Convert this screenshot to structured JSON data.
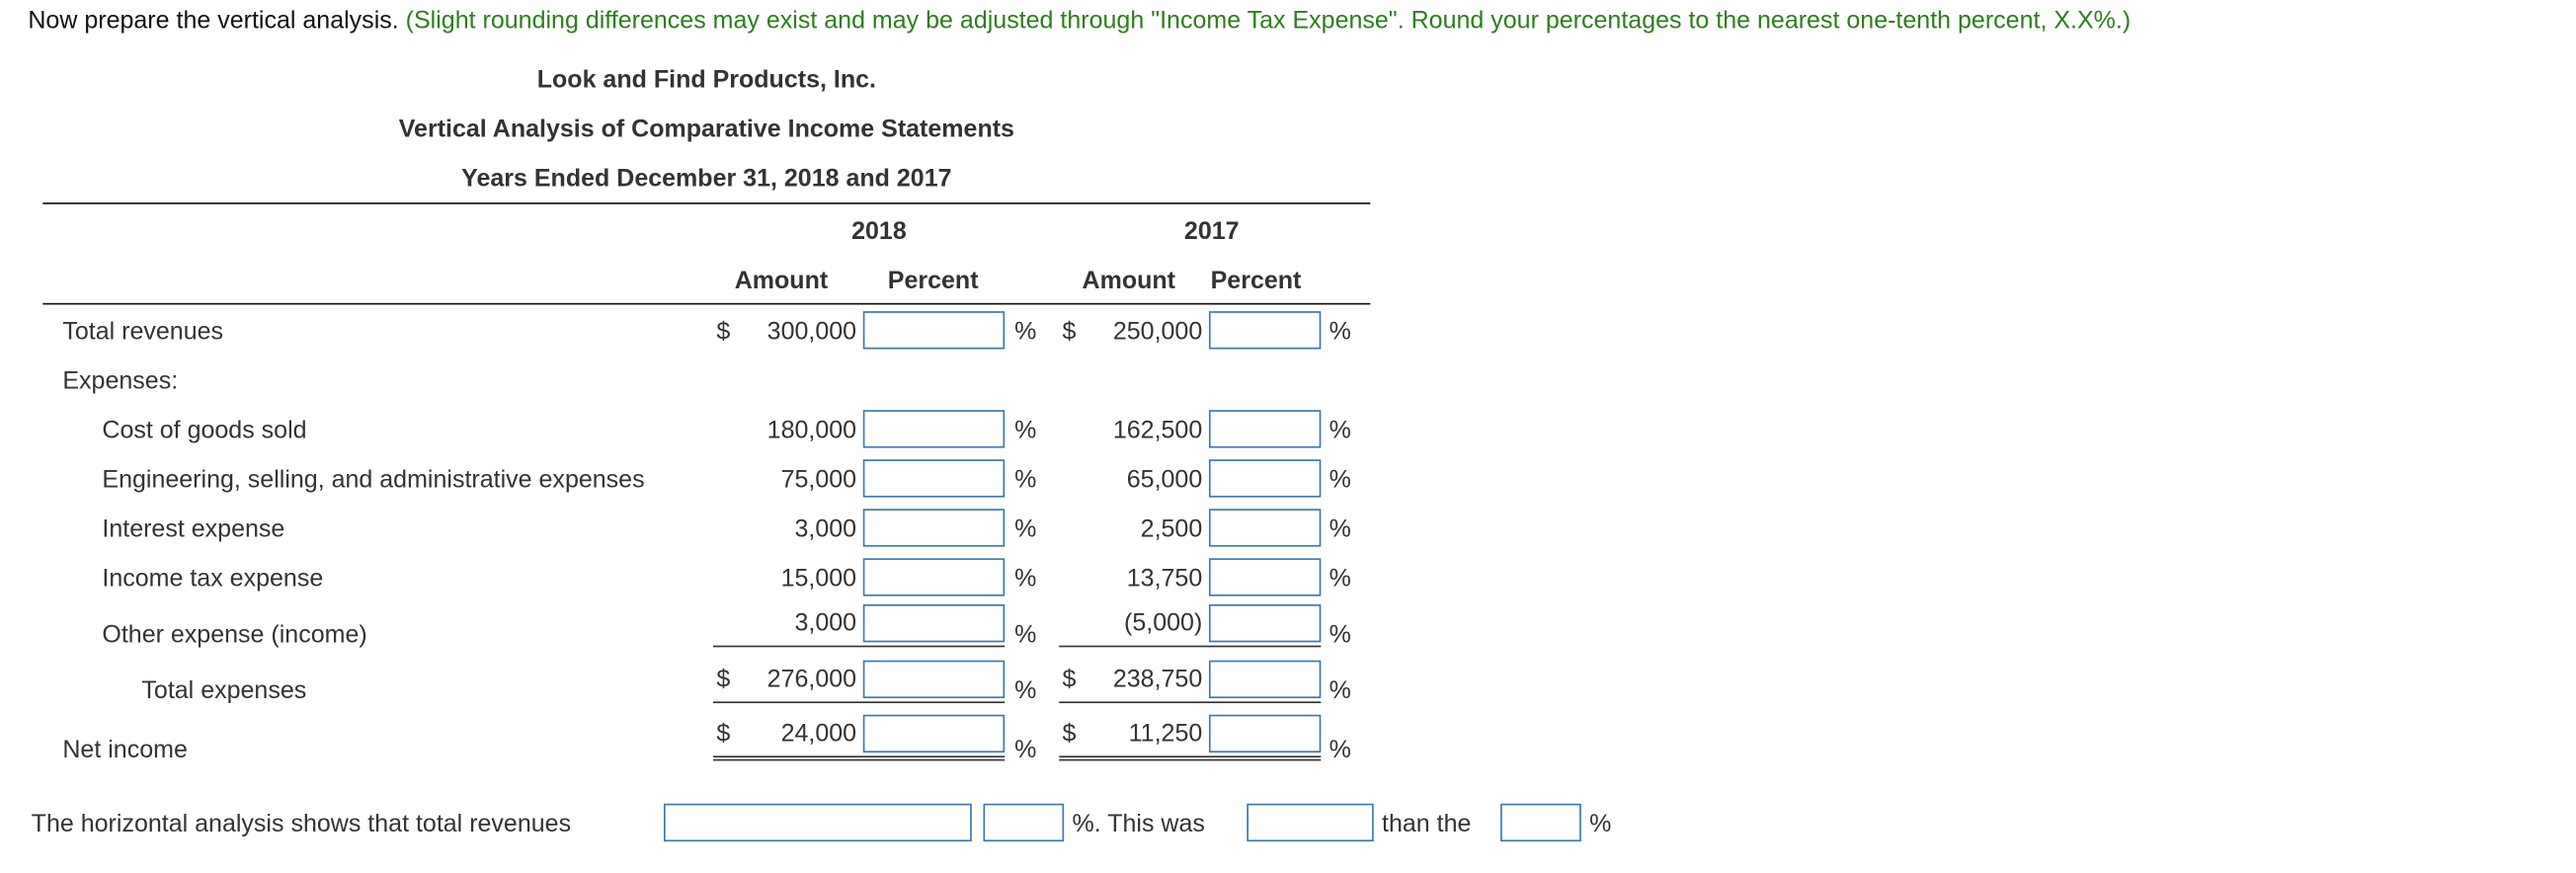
{
  "intro": {
    "text": "Now prepare the vertical analysis.",
    "note": "(Slight rounding differences may exist and may be adjusted through \"Income Tax Expense\". Round your percentages to the nearest one-tenth percent, X.X%.)"
  },
  "statement": {
    "company": "Look and Find Products, Inc.",
    "title": "Vertical Analysis of Comparative Income Statements",
    "period": "Years Ended December 31, 2018 and 2017",
    "year1": "2018",
    "year2": "2017",
    "amount_header": "Amount",
    "percent_header": "Percent",
    "currency": "$",
    "percent_sign": "%"
  },
  "rows": {
    "revenues": {
      "label": "Total revenues",
      "y2018": "300,000",
      "y2017": "250,000"
    },
    "expenses_heading": "Expenses:",
    "cogs": {
      "label": "Cost of goods sold",
      "y2018": "180,000",
      "y2017": "162,500"
    },
    "engineering": {
      "label": "Engineering, selling, and administrative expenses",
      "y2018": "75,000",
      "y2017": "65,000"
    },
    "interest": {
      "label": "Interest expense",
      "y2018": "3,000",
      "y2017": "2,500"
    },
    "tax": {
      "label": "Income tax expense",
      "y2018": "15,000",
      "y2017": "13,750"
    },
    "other": {
      "label": "Other expense (income)",
      "y2018": "3,000",
      "y2017": "(5,000)"
    },
    "total_expenses": {
      "label": "Total expenses",
      "y2018": "276,000",
      "y2017": "238,750"
    },
    "net_income": {
      "label": "Net income",
      "y2018": "24,000",
      "y2017": "11,250"
    }
  },
  "horizontal": {
    "lead": "The horizontal analysis shows that total revenues",
    "mid": "%. This was",
    "than": "than the",
    "end": "%"
  }
}
